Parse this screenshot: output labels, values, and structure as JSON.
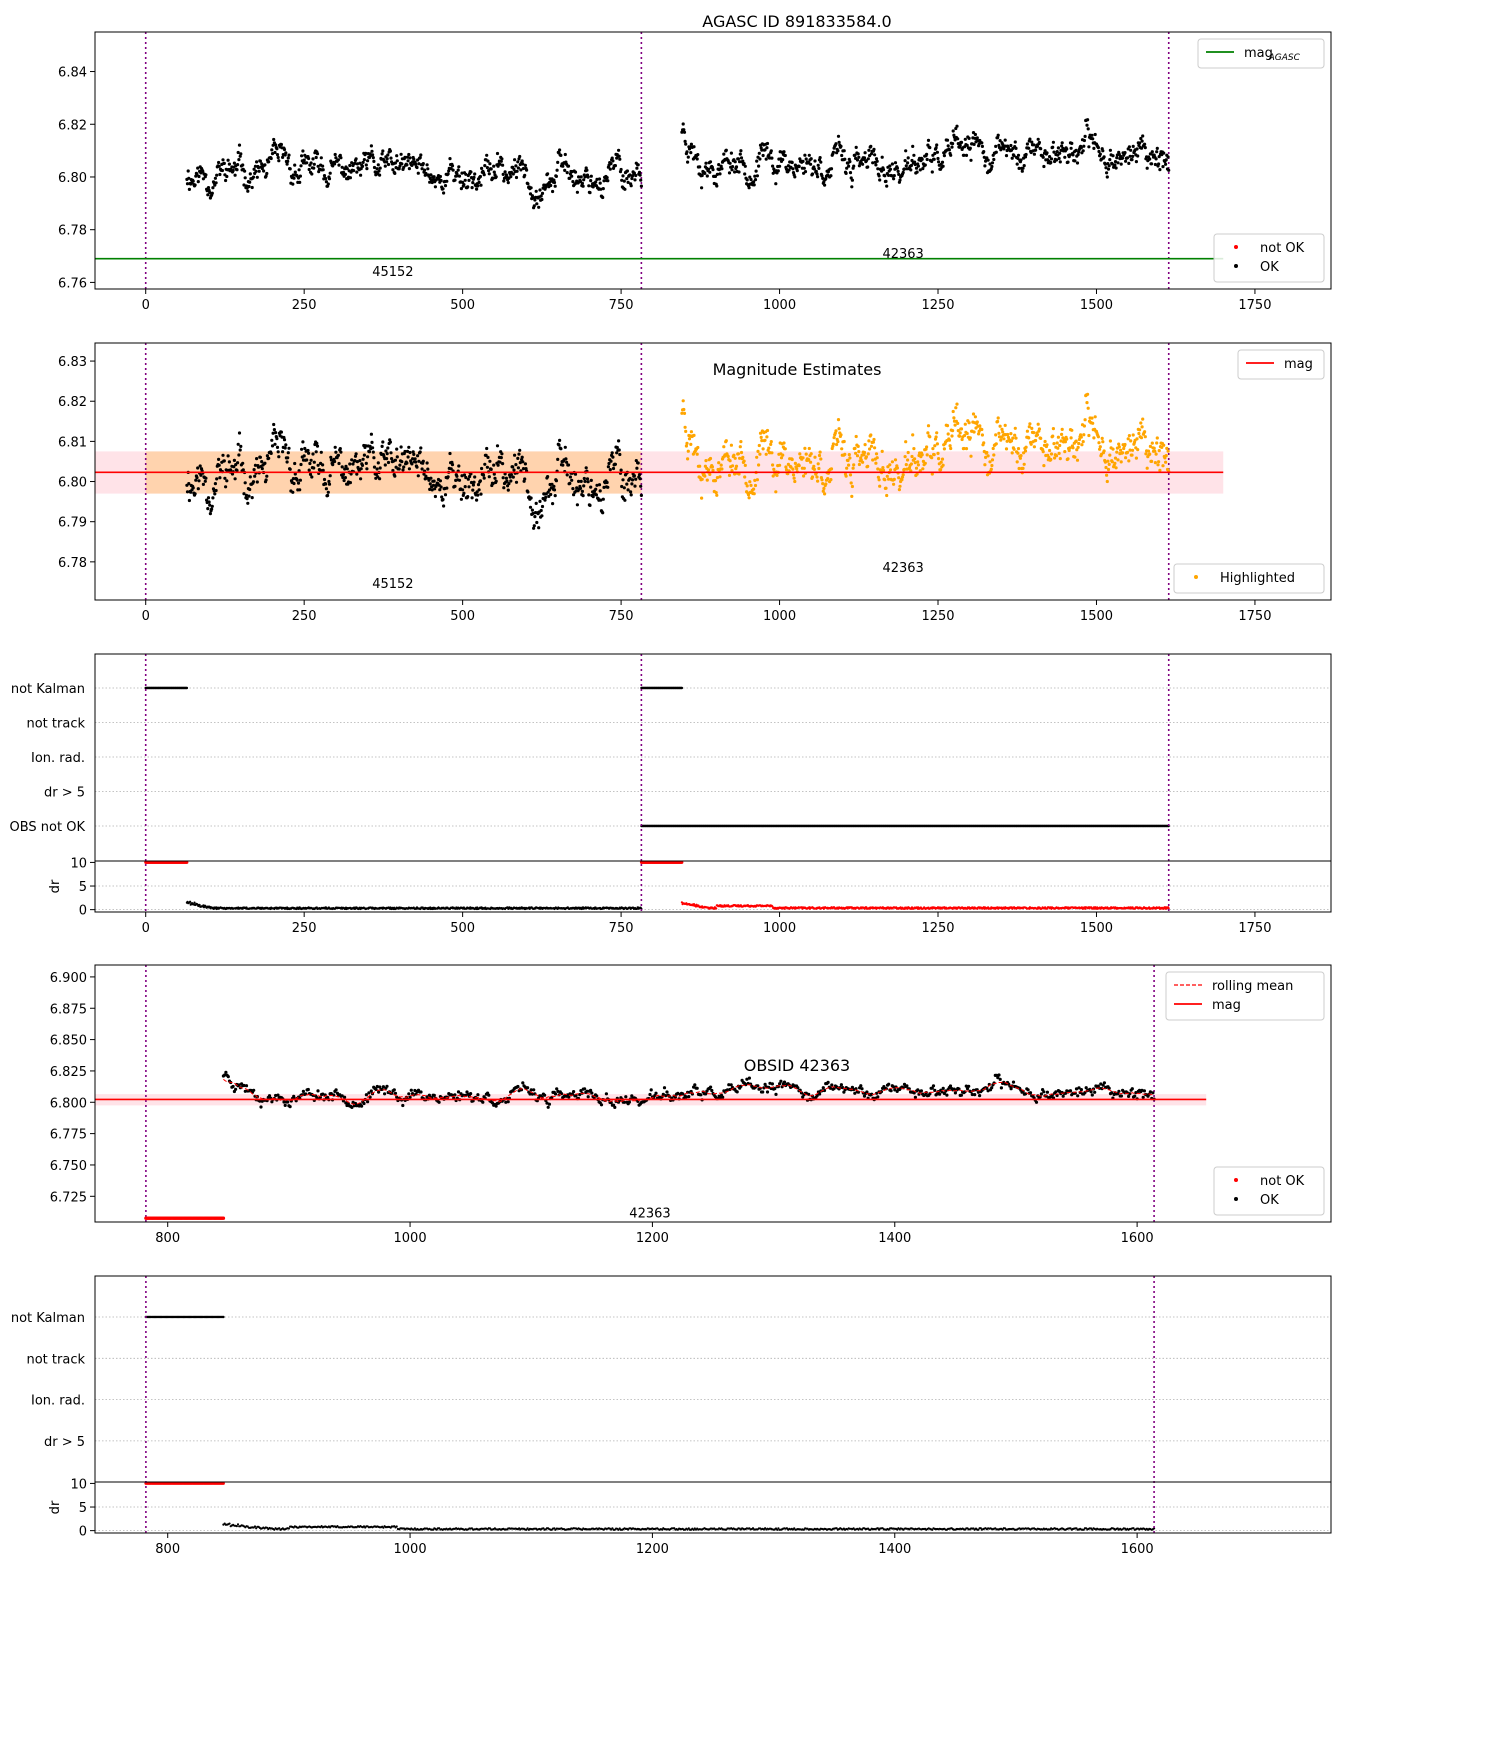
{
  "colors": {
    "ok": "#000000",
    "not_ok": "#ff0000",
    "highlighted": "#ffa500",
    "agasc_line": "#008000",
    "mag_line": "#ff0000",
    "obs_boundary": "#800080",
    "band_fill": "#ffc0cb",
    "band_highlight_fill": "#ffa500",
    "grid": "#b0b0b0"
  },
  "obsids": [
    {
      "label": "45152",
      "start": 0,
      "end": 782
    },
    {
      "label": "42363",
      "start": 782,
      "end": 1614
    }
  ],
  "chart_data": [
    {
      "id": "agasc",
      "type": "scatter",
      "title": "AGASC ID 891833584.0",
      "xlabel": "",
      "ylabel": "",
      "xlim": [
        -80,
        1870
      ],
      "ylim": [
        6.7575,
        6.855
      ],
      "xticks": [
        0,
        250,
        500,
        750,
        1000,
        1250,
        1500,
        1750
      ],
      "yticks": [
        6.76,
        6.78,
        6.8,
        6.82,
        6.84
      ],
      "ytick_decimals": 2,
      "vlines": [
        0,
        782,
        1614
      ],
      "hlines": [
        {
          "y": 6.769,
          "x": [
            -80,
            1700
          ],
          "name_main": "mag",
          "name_sub": "AGASC"
        }
      ],
      "obs_labels": [
        {
          "text": "45152",
          "x": 390,
          "y": 6.7625
        },
        {
          "text": "42363",
          "x": 1195,
          "y": 6.7692
        }
      ],
      "legends": [
        {
          "position": "top-right",
          "entries": [
            {
              "kind": "line",
              "text": "mag",
              "sub": "AGASC"
            }
          ]
        },
        {
          "position": "bottom-right",
          "entries": [
            {
              "kind": "dot-red",
              "text": "not OK"
            },
            {
              "kind": "dot-black",
              "text": "OK"
            }
          ]
        }
      ],
      "series": [
        {
          "name": "OK",
          "x_range": [
            65,
            782
          ],
          "mean": 6.8015,
          "noise": 0.005,
          "style": "ok",
          "seed": 11
        },
        {
          "name": "OK",
          "x_range": [
            846,
            1614
          ],
          "mean": 6.807,
          "noise": 0.005,
          "style": "ok",
          "seed": 23,
          "drift": [
            [
              846,
              6.819
            ],
            [
              880,
              6.808
            ],
            [
              1000,
              6.807
            ],
            [
              1100,
              6.805
            ],
            [
              1150,
              6.802
            ],
            [
              1200,
              6.803
            ],
            [
              1300,
              6.808
            ],
            [
              1450,
              6.811
            ],
            [
              1614,
              6.809
            ]
          ]
        }
      ]
    },
    {
      "id": "estimates",
      "type": "scatter",
      "title": "Magnitude Estimates",
      "xlabel": "",
      "ylabel": "",
      "xlim": [
        -80,
        1870
      ],
      "ylim": [
        6.7705,
        6.8345
      ],
      "xticks": [
        0,
        250,
        500,
        750,
        1000,
        1250,
        1500,
        1750
      ],
      "yticks": [
        6.78,
        6.79,
        6.8,
        6.81,
        6.82,
        6.83
      ],
      "ytick_decimals": 2,
      "vlines": [
        0,
        782,
        1614
      ],
      "mag": 6.8023,
      "band": [
        6.797,
        6.8075
      ],
      "band_highlight_x": [
        0,
        782
      ],
      "obs_labels": [
        {
          "text": "45152",
          "x": 390,
          "y": 6.7735
        },
        {
          "text": "42363",
          "x": 1195,
          "y": 6.7775
        }
      ],
      "legends": [
        {
          "position": "top-right",
          "entries": [
            {
              "kind": "line",
              "text": "mag"
            }
          ]
        },
        {
          "position": "bottom-right",
          "entries": [
            {
              "kind": "dot-orange",
              "text": "Highlighted"
            }
          ]
        }
      ],
      "series": [
        {
          "name": "OK",
          "x_range": [
            65,
            782
          ],
          "mean": 6.8015,
          "noise": 0.005,
          "style": "ok",
          "seed": 11
        },
        {
          "name": "Highlighted",
          "x_range": [
            846,
            1614
          ],
          "mean": 6.807,
          "noise": 0.005,
          "style": "highlighted",
          "seed": 23,
          "drift": [
            [
              846,
              6.819
            ],
            [
              880,
              6.808
            ],
            [
              1000,
              6.807
            ],
            [
              1100,
              6.805
            ],
            [
              1150,
              6.802
            ],
            [
              1200,
              6.803
            ],
            [
              1300,
              6.808
            ],
            [
              1450,
              6.811
            ],
            [
              1614,
              6.809
            ]
          ]
        }
      ]
    },
    {
      "id": "flags_all",
      "type": "scatter",
      "title": "",
      "xlim": [
        -80,
        1870
      ],
      "xticks": [
        0,
        250,
        500,
        750,
        1000,
        1250,
        1500,
        1750
      ],
      "vlines": [
        0,
        782,
        1614
      ],
      "flag_rows": [
        "not Kalman",
        "not track",
        "Ion. rad.",
        "dr > 5",
        "OBS not OK"
      ],
      "flag_segments": [
        {
          "row": "not Kalman",
          "x": [
            0,
            65
          ]
        },
        {
          "row": "not Kalman",
          "x": [
            782,
            846
          ]
        },
        {
          "row": "OBS not OK",
          "x": [
            782,
            1614
          ]
        }
      ],
      "dr_ylabel": "dr",
      "dr_yticks": [
        0,
        5,
        10
      ],
      "dr_ylim": [
        -0.5,
        10.3
      ],
      "dr_clip": [
        {
          "x": [
            0,
            65
          ],
          "color": "not_ok"
        },
        {
          "x": [
            782,
            846
          ],
          "color": "not_ok"
        }
      ],
      "dr_series": [
        {
          "x_range": [
            65,
            782
          ],
          "mean": 0.3,
          "style": "ok",
          "start_spike": 1.6
        },
        {
          "x_range": [
            846,
            1614
          ],
          "mean": 0.35,
          "style": "not_ok",
          "start_spike": 1.3
        }
      ]
    },
    {
      "id": "obsid",
      "type": "scatter",
      "title": "OBSID 42363",
      "xlabel": "",
      "ylabel": "",
      "xlim": [
        740,
        1760
      ],
      "ylim": [
        6.7045,
        6.9095
      ],
      "xticks": [
        800,
        1000,
        1200,
        1400,
        1600
      ],
      "yticks": [
        6.725,
        6.75,
        6.775,
        6.8,
        6.825,
        6.85,
        6.875,
        6.9
      ],
      "ytick_decimals": 3,
      "vlines": [
        782,
        1614
      ],
      "mag": 6.8023,
      "band": [
        6.7975,
        6.8065
      ],
      "band_x": [
        740,
        1657
      ],
      "obs_labels": [
        {
          "text": "42363",
          "x": 1198,
          "y": 6.708
        }
      ],
      "not_ok_floor": {
        "x": [
          782,
          846
        ],
        "y": 6.7075
      },
      "legends": [
        {
          "position": "top-right",
          "entries": [
            {
              "kind": "dash",
              "text": "rolling mean"
            },
            {
              "kind": "line",
              "text": "mag"
            }
          ]
        },
        {
          "position": "bottom-right",
          "entries": [
            {
              "kind": "dot-red",
              "text": "not OK"
            },
            {
              "kind": "dot-black",
              "text": "OK"
            }
          ]
        }
      ],
      "series": [
        {
          "name": "OK",
          "x_range": [
            846,
            1614
          ],
          "mean": 6.807,
          "noise": 0.005,
          "style": "ok",
          "seed": 23,
          "drift": [
            [
              846,
              6.823
            ],
            [
              880,
              6.808
            ],
            [
              1000,
              6.807
            ],
            [
              1100,
              6.805
            ],
            [
              1150,
              6.801
            ],
            [
              1200,
              6.803
            ],
            [
              1300,
              6.808
            ],
            [
              1450,
              6.811
            ],
            [
              1614,
              6.809
            ]
          ]
        }
      ]
    },
    {
      "id": "flags_obsid",
      "type": "scatter",
      "title": "",
      "xlim": [
        740,
        1760
      ],
      "xticks": [
        800,
        1000,
        1200,
        1400,
        1600
      ],
      "vlines": [
        782,
        1614
      ],
      "flag_rows": [
        "not Kalman",
        "not track",
        "Ion. rad.",
        "dr > 5"
      ],
      "flag_segments": [
        {
          "row": "not Kalman",
          "x": [
            782,
            846
          ]
        }
      ],
      "dr_ylabel": "dr",
      "dr_yticks": [
        0,
        5,
        10
      ],
      "dr_ylim": [
        -0.5,
        10.3
      ],
      "dr_clip": [
        {
          "x": [
            782,
            846
          ],
          "color": "not_ok"
        }
      ],
      "dr_series": [
        {
          "x_range": [
            846,
            1614
          ],
          "mean": 0.35,
          "style": "ok",
          "start_spike": 1.3
        }
      ]
    }
  ]
}
